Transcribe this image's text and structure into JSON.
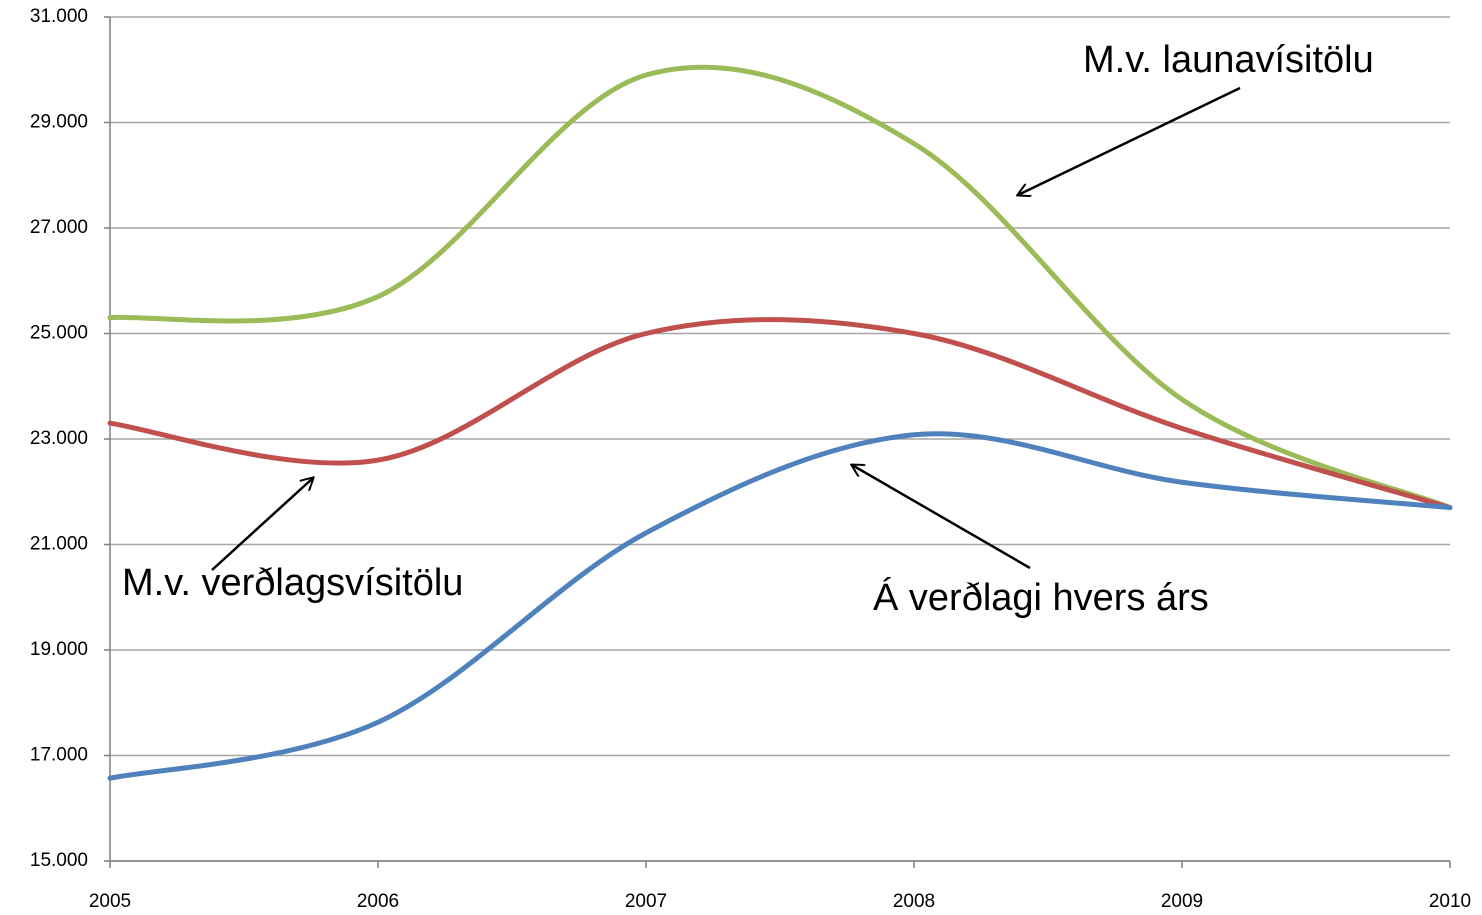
{
  "chart_data": {
    "type": "line",
    "categories": [
      "2005",
      "2006",
      "2007",
      "2008",
      "2009",
      "2010"
    ],
    "series": [
      {
        "name": "M.v. launavísitölu",
        "color": "#9bbb59",
        "values": [
          25300,
          25700,
          29900,
          28600,
          23750,
          21700
        ]
      },
      {
        "name": "M.v. verðlagsvísitölu",
        "color": "#c0504d",
        "values": [
          23300,
          22600,
          25000,
          25000,
          23200,
          21700
        ]
      },
      {
        "name": "Á verðlagi hvers árs",
        "color": "#4f81bd",
        "values": [
          16570,
          17630,
          21220,
          23080,
          22180,
          21700
        ]
      }
    ],
    "ylim": [
      15000,
      31000
    ],
    "yticks": [
      {
        "value": 15000,
        "label": "15.000"
      },
      {
        "value": 17000,
        "label": "17.000"
      },
      {
        "value": 19000,
        "label": "19.000"
      },
      {
        "value": 21000,
        "label": "21.000"
      },
      {
        "value": 23000,
        "label": "23.000"
      },
      {
        "value": 25000,
        "label": "25.000"
      },
      {
        "value": 27000,
        "label": "27.000"
      },
      {
        "value": 29000,
        "label": "29.000"
      },
      {
        "value": 31000,
        "label": "31.000"
      }
    ],
    "grid": true
  }
}
